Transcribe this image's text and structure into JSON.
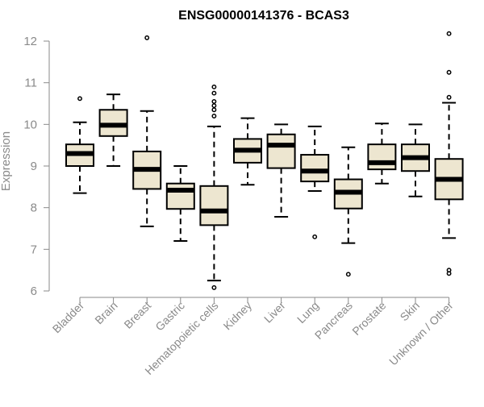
{
  "chart_data": {
    "type": "box",
    "title": "ENSG00000141376 - BCAS3",
    "xlabel": "",
    "ylabel": "Expression",
    "ylim": [
      6,
      12
    ],
    "yticks": [
      6,
      7,
      8,
      9,
      10,
      11,
      12
    ],
    "grid": false,
    "colors": {
      "box_fill": "#ede6d0",
      "stroke": "#000000",
      "axis": "#8a8a8a"
    },
    "categories": [
      "Bladder",
      "Brain",
      "Breast",
      "Gastric",
      "Hematopoietic cells",
      "Kidney",
      "Liver",
      "Lung",
      "Pancreas",
      "Prostate",
      "Skin",
      "Unknown / Other"
    ],
    "boxes": [
      {
        "category": "Bladder",
        "whisker_low": 8.35,
        "q1": 9.0,
        "median": 9.3,
        "q3": 9.52,
        "whisker_high": 10.05,
        "outliers": [
          10.62
        ]
      },
      {
        "category": "Brain",
        "whisker_low": 9.0,
        "q1": 9.72,
        "median": 9.98,
        "q3": 10.35,
        "whisker_high": 10.72,
        "outliers": []
      },
      {
        "category": "Breast",
        "whisker_low": 7.55,
        "q1": 8.45,
        "median": 8.92,
        "q3": 9.35,
        "whisker_high": 10.32,
        "outliers": [
          12.08
        ]
      },
      {
        "category": "Gastric",
        "whisker_low": 7.2,
        "q1": 7.97,
        "median": 8.42,
        "q3": 8.58,
        "whisker_high": 9.0,
        "outliers": []
      },
      {
        "category": "Hematopoietic cells",
        "whisker_low": 6.25,
        "q1": 7.58,
        "median": 7.92,
        "q3": 8.52,
        "whisker_high": 9.95,
        "outliers": [
          6.08,
          10.2,
          10.35,
          10.45,
          10.55,
          10.75,
          10.9
        ]
      },
      {
        "category": "Kidney",
        "whisker_low": 8.55,
        "q1": 9.08,
        "median": 9.38,
        "q3": 9.65,
        "whisker_high": 10.15,
        "outliers": []
      },
      {
        "category": "Liver",
        "whisker_low": 7.78,
        "q1": 8.95,
        "median": 9.5,
        "q3": 9.76,
        "whisker_high": 10.0,
        "outliers": []
      },
      {
        "category": "Lung",
        "whisker_low": 8.4,
        "q1": 8.63,
        "median": 8.88,
        "q3": 9.27,
        "whisker_high": 9.95,
        "outliers": [
          7.3
        ]
      },
      {
        "category": "Pancreas",
        "whisker_low": 7.15,
        "q1": 7.98,
        "median": 8.37,
        "q3": 8.68,
        "whisker_high": 9.45,
        "outliers": [
          6.4
        ]
      },
      {
        "category": "Prostate",
        "whisker_low": 8.58,
        "q1": 8.92,
        "median": 9.08,
        "q3": 9.52,
        "whisker_high": 10.02,
        "outliers": []
      },
      {
        "category": "Skin",
        "whisker_low": 8.27,
        "q1": 8.88,
        "median": 9.2,
        "q3": 9.52,
        "whisker_high": 10.0,
        "outliers": []
      },
      {
        "category": "Unknown / Other",
        "whisker_low": 7.27,
        "q1": 8.2,
        "median": 8.68,
        "q3": 9.17,
        "whisker_high": 10.52,
        "outliers": [
          6.42,
          6.5,
          10.65,
          11.25,
          12.18
        ]
      }
    ]
  }
}
